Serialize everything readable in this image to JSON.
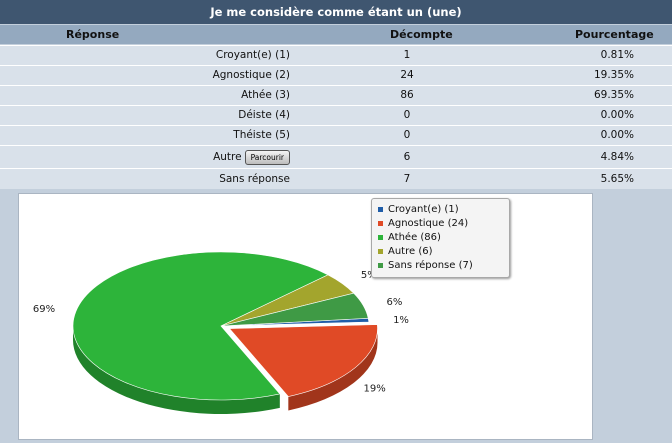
{
  "title": "Je me considère comme étant un (une)",
  "headers": {
    "response": "Réponse",
    "count": "Décompte",
    "percent": "Pourcentage"
  },
  "rows": [
    {
      "label": "Croyant(e) (1)",
      "count": "1",
      "percent": "0.81%"
    },
    {
      "label": "Agnostique (2)",
      "count": "24",
      "percent": "19.35%"
    },
    {
      "label": "Athée (3)",
      "count": "86",
      "percent": "69.35%"
    },
    {
      "label": "Déiste (4)",
      "count": "0",
      "percent": "0.00%"
    },
    {
      "label": "Théiste (5)",
      "count": "0",
      "percent": "0.00%"
    },
    {
      "label": "Autre",
      "count": "6",
      "percent": "4.84%",
      "button": "Parcourir"
    },
    {
      "label": "Sans réponse",
      "count": "7",
      "percent": "5.65%"
    }
  ],
  "chart_data": {
    "type": "pie",
    "slices": [
      {
        "name": "Croyant(e) (1)",
        "value": 1,
        "label": "1%",
        "color": "#1f5da8"
      },
      {
        "name": "Agnostique (24)",
        "value": 24,
        "label": "19%",
        "color": "#e04a26"
      },
      {
        "name": "Athée (86)",
        "value": 86,
        "label": "69%",
        "color": "#2db43a"
      },
      {
        "name": "Autre (6)",
        "value": 6,
        "label": "5%",
        "color": "#a3a52d"
      },
      {
        "name": "Sans réponse (7)",
        "value": 7,
        "label": "6%",
        "color": "#3f9a45"
      }
    ],
    "legend": "top-right"
  }
}
